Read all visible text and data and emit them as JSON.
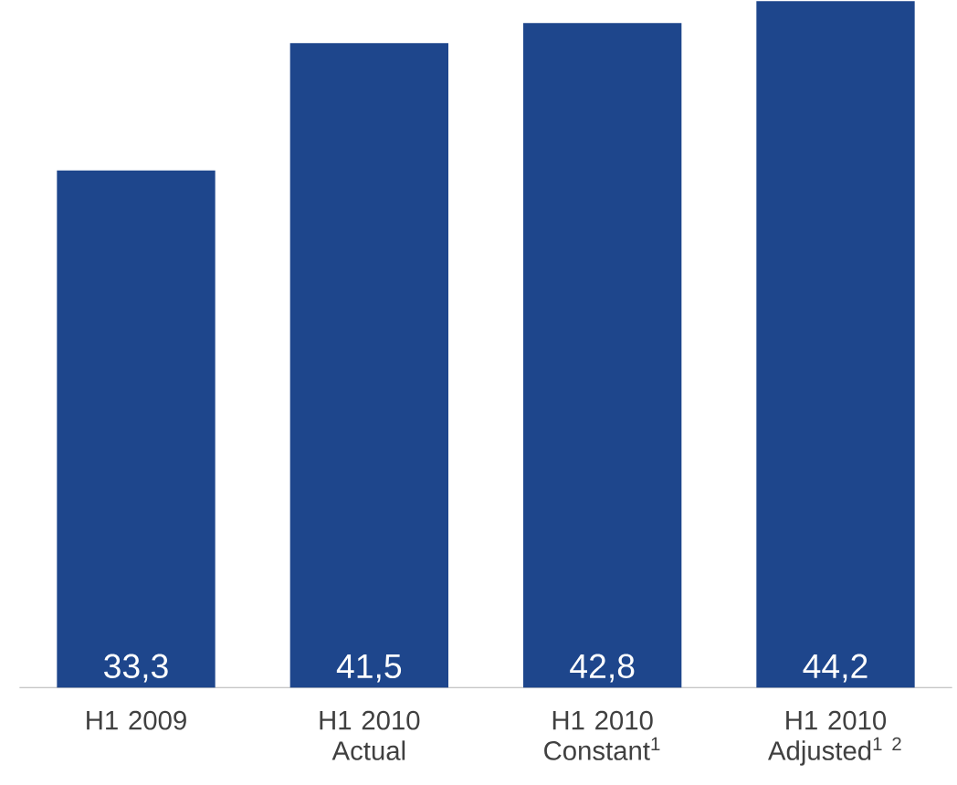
{
  "chart_data": {
    "type": "bar",
    "categories": [
      "H1 2009",
      "H1 2010 Actual",
      "H1 2010 Constant$^{1}$",
      "H1 2010 Adjusted$^{1 2}$"
    ],
    "values": [
      33.3,
      41.5,
      42.8,
      44.2
    ],
    "value_labels": [
      "33,3",
      "41,5",
      "42,8",
      "44,2"
    ],
    "color": "#1e468c"
  }
}
